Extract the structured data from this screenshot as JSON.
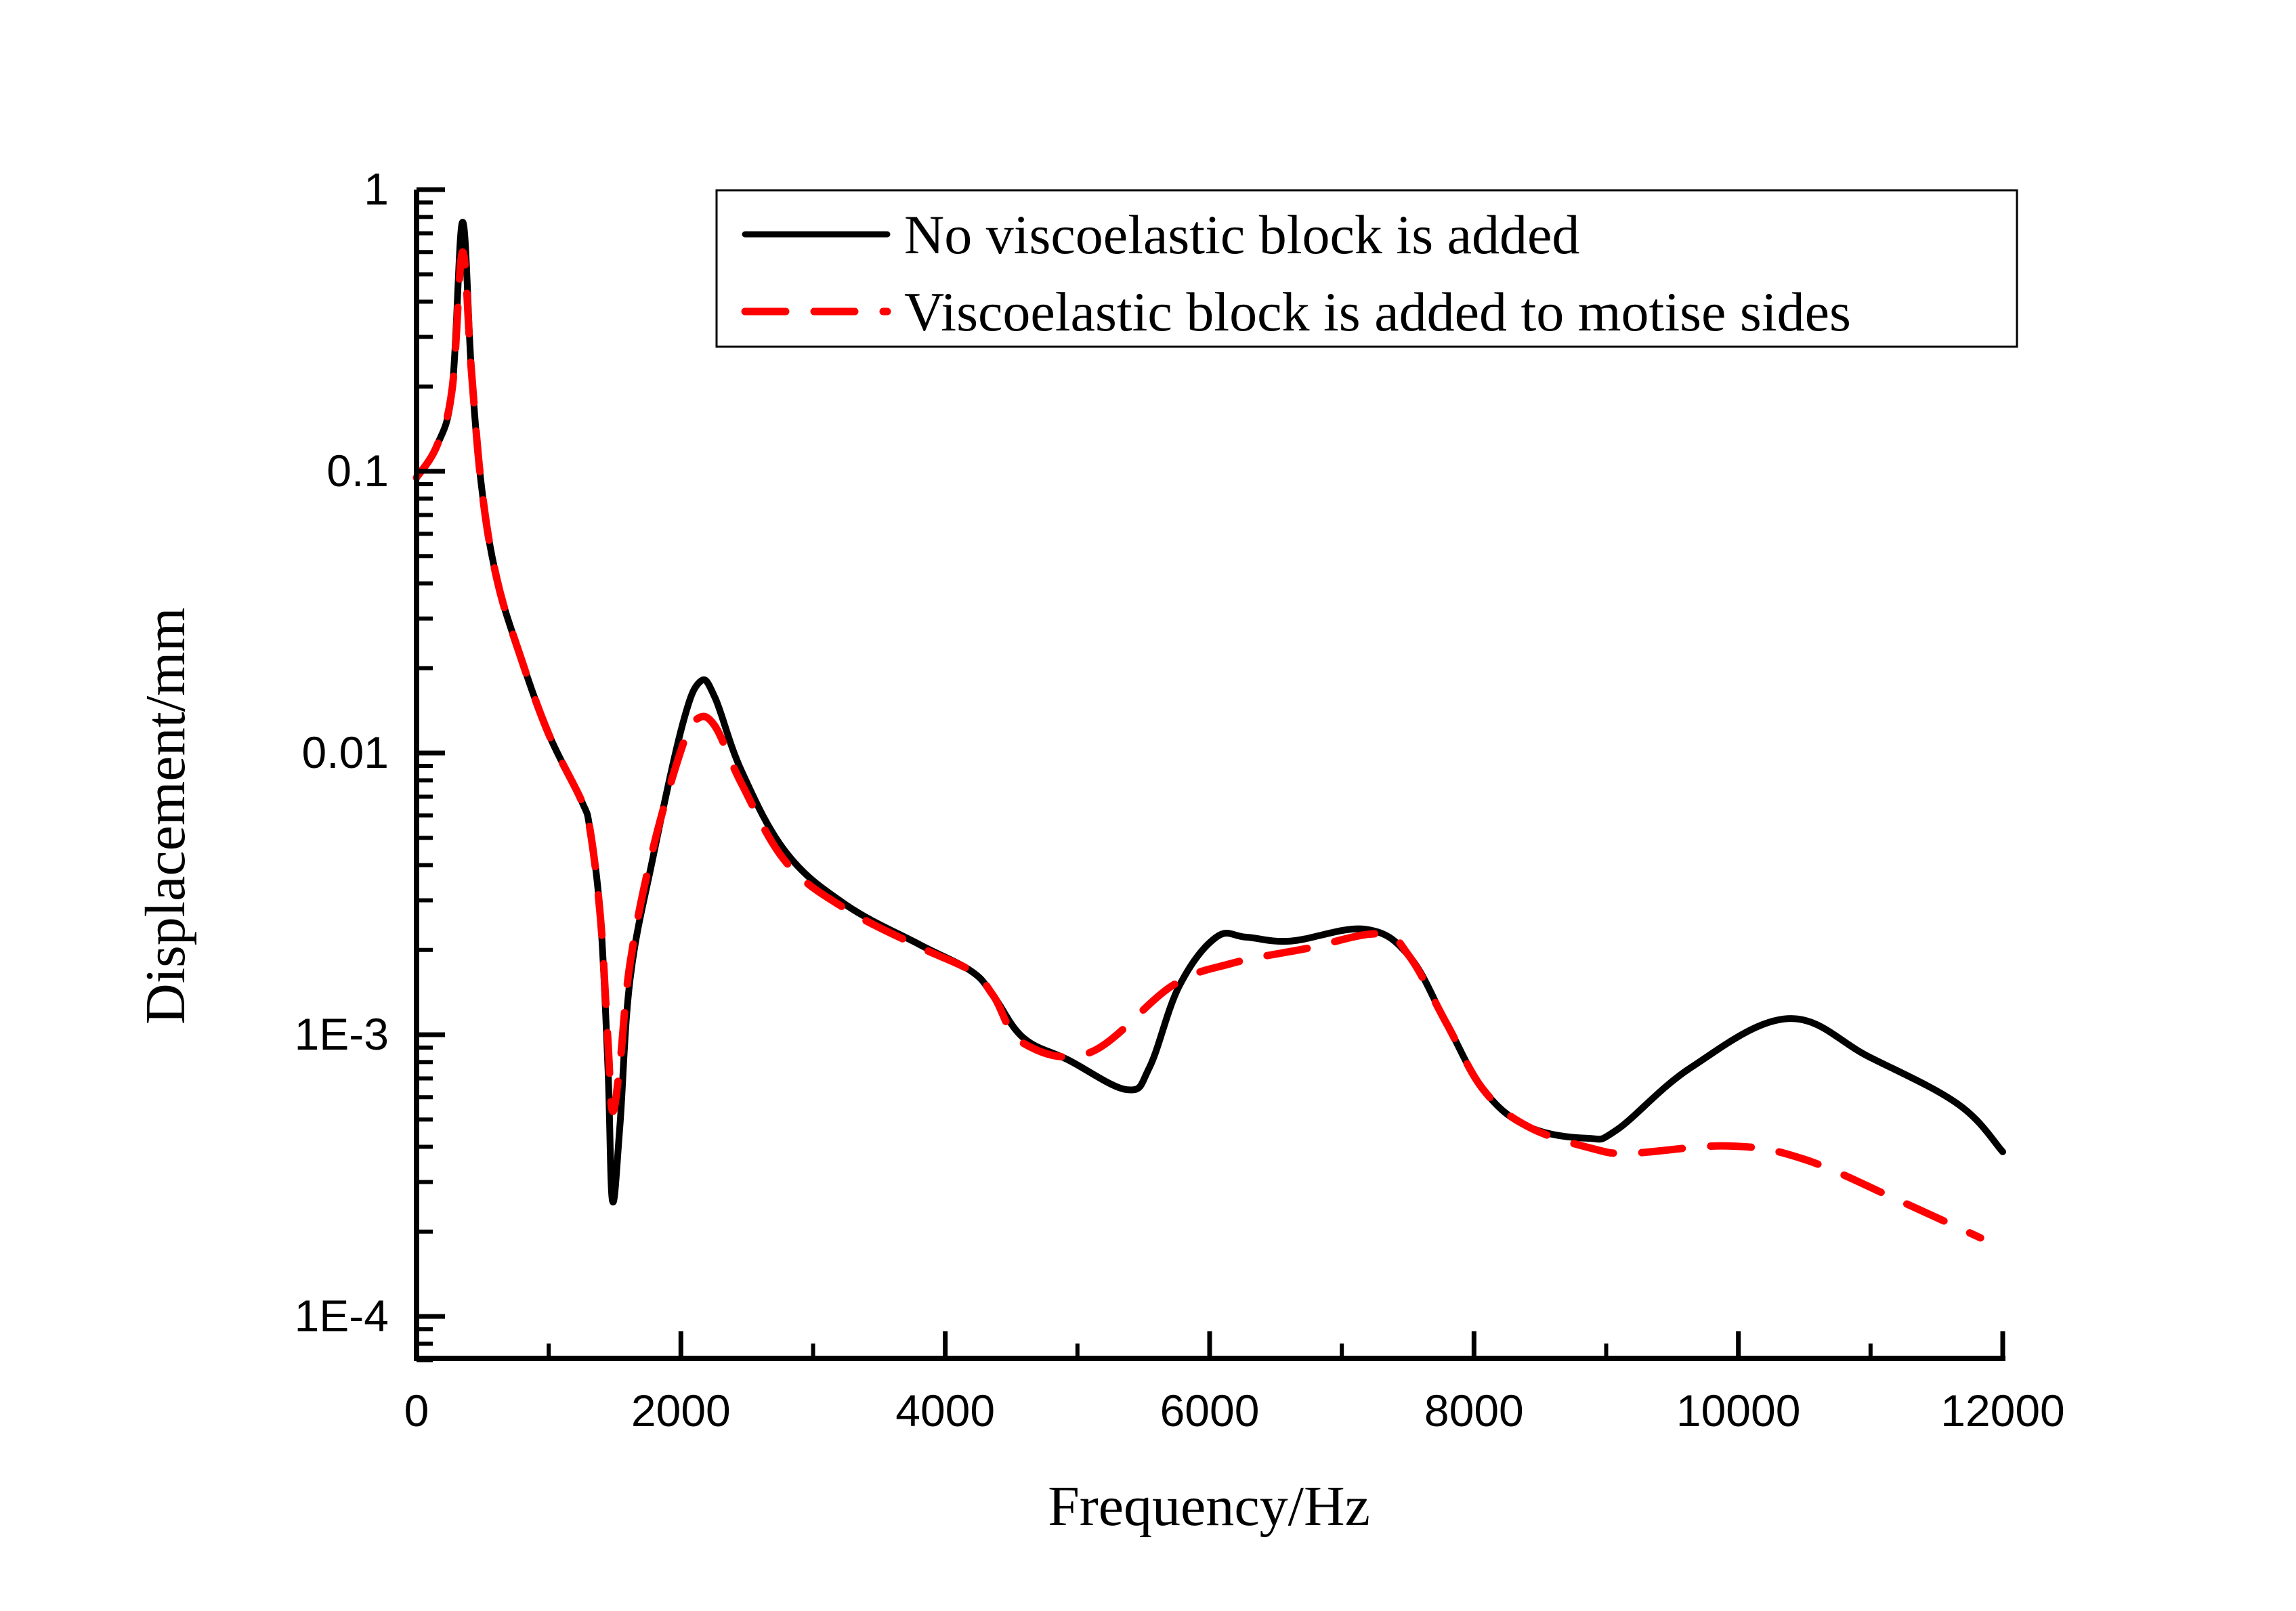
{
  "chart_data": {
    "type": "line",
    "title": "",
    "xlabel": "Frequency/Hz",
    "ylabel": "Displacement/mm",
    "xlim": [
      0,
      12000
    ],
    "ylim": [
      7e-05,
      1
    ],
    "yscale": "log",
    "grid": false,
    "legend_position": "top-right",
    "x_ticks": [
      "0",
      "2000",
      "4000",
      "6000",
      "8000",
      "10000",
      "12000"
    ],
    "x_tick_values": [
      0,
      2000,
      4000,
      6000,
      8000,
      10000,
      12000
    ],
    "y_ticks": [
      "1",
      "0.1",
      "0.01",
      "1E-3",
      "1E-4"
    ],
    "y_tick_values": [
      1,
      0.1,
      0.01,
      0.001,
      0.0001
    ],
    "series": [
      {
        "name": "No viscoelastic block is added",
        "color": "#000000",
        "style": "solid",
        "x": [
          0,
          157,
          270,
          348,
          415,
          494,
          606,
          775,
          999,
          1246,
          1313,
          1392,
          1448,
          1482,
          1538,
          1616,
          1785,
          2009,
          2144,
          2256,
          2458,
          2795,
          3244,
          3805,
          4198,
          4366,
          4591,
          4928,
          5377,
          5545,
          5770,
          6050,
          6275,
          6612,
          7173,
          7510,
          7791,
          8071,
          8408,
          8857,
          9082,
          9643,
          10373,
          10990,
          11664,
          12000
        ],
        "y": [
          0.095,
          0.124,
          0.197,
          0.766,
          0.228,
          0.0865,
          0.0418,
          0.0228,
          0.0117,
          0.0068,
          0.00532,
          0.00258,
          0.000766,
          0.000258,
          0.000472,
          0.00158,
          0.00418,
          0.01245,
          0.0179,
          0.0158,
          0.00865,
          0.00444,
          0.0029,
          0.00209,
          0.00168,
          0.00137,
          0.000975,
          0.000815,
          0.000638,
          0.000766,
          0.00149,
          0.00222,
          0.00222,
          0.00215,
          0.00237,
          0.0019,
          0.0011,
          0.000638,
          0.000472,
          0.000429,
          0.00046,
          0.000766,
          0.00114,
          0.000834,
          0.000566,
          0.000384
        ]
      },
      {
        "name": "Viscoelastic block is added to motise sides",
        "color": "#ff0000",
        "style": "dashed",
        "x": [
          0,
          157,
          270,
          348,
          415,
          494,
          606,
          775,
          999,
          1246,
          1313,
          1392,
          1448,
          1482,
          1538,
          1616,
          1785,
          2009,
          2121,
          2256,
          2458,
          2795,
          3244,
          3805,
          4198,
          4366,
          4591,
          5096,
          5714,
          6163,
          6724,
          7285,
          7510,
          7791,
          8071,
          8408,
          8900,
          9194,
          9924,
          10485,
          11215,
          11832
        ],
        "y": [
          0.095,
          0.124,
          0.197,
          0.6,
          0.228,
          0.0865,
          0.0418,
          0.0228,
          0.0117,
          0.0068,
          0.00532,
          0.00258,
          0.00095,
          0.000537,
          0.00078,
          0.0018,
          0.0045,
          0.0105,
          0.0132,
          0.0125,
          0.0078,
          0.0041,
          0.0028,
          0.00205,
          0.00168,
          0.00137,
          0.000933,
          0.000865,
          0.00149,
          0.00179,
          0.00202,
          0.00228,
          0.0019,
          0.0011,
          0.000638,
          0.000472,
          0.000394,
          0.00038,
          0.000403,
          0.000363,
          0.000258,
          0.00019
        ]
      }
    ]
  }
}
